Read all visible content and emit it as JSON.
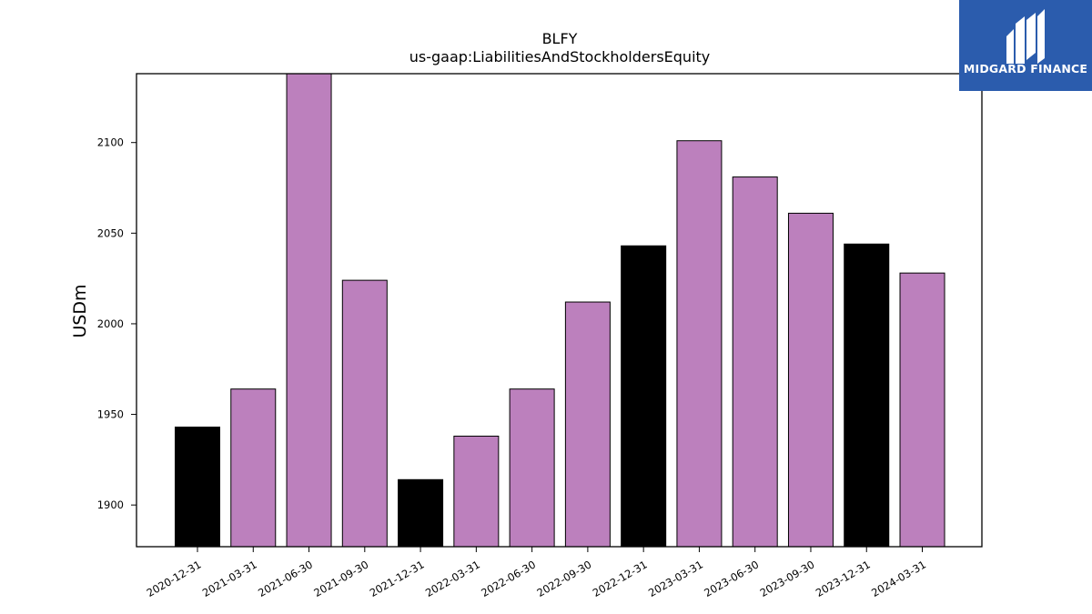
{
  "brand": {
    "name": "MIDGARD FINANCE",
    "logo_color": "#2b5cad"
  },
  "chart_data": {
    "type": "bar",
    "title": "BLFY",
    "subtitle": "us-gaap:LiabilitiesAndStockholdersEquity",
    "xlabel": "",
    "ylabel": "USDm",
    "ylim": [
      1877,
      2138
    ],
    "yticks": [
      1900,
      1950,
      2000,
      2050,
      2100
    ],
    "grid": false,
    "categories": [
      "2020-12-31",
      "2021-03-31",
      "2021-06-30",
      "2021-09-30",
      "2021-12-31",
      "2022-03-31",
      "2022-06-30",
      "2022-09-30",
      "2022-12-31",
      "2023-03-31",
      "2023-06-30",
      "2023-09-30",
      "2023-12-31",
      "2024-03-31"
    ],
    "values": [
      1943,
      1964,
      2138,
      2024,
      1914,
      1938,
      1964,
      2012,
      2043,
      2101,
      2081,
      2061,
      2044,
      2028
    ],
    "colors": [
      "#000000",
      "#bc80bd",
      "#bc80bd",
      "#bc80bd",
      "#000000",
      "#bc80bd",
      "#bc80bd",
      "#bc80bd",
      "#000000",
      "#bc80bd",
      "#bc80bd",
      "#bc80bd",
      "#000000",
      "#bc80bd"
    ],
    "bar_edge_color": "#000000"
  }
}
